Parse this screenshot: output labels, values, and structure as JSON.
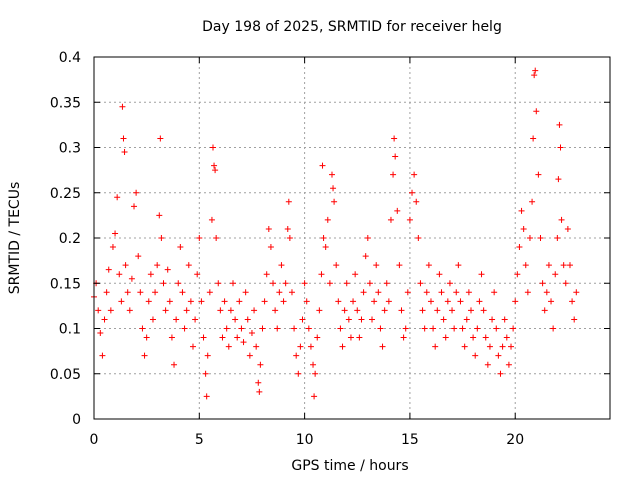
{
  "chart_data": {
    "type": "scatter",
    "title": "Day 198 of 2025, SRMTID for receiver helg",
    "xlabel": "GPS time / hours",
    "ylabel": "SRMTID / TECUs",
    "xlim": [
      0,
      24.5
    ],
    "ylim": [
      0,
      0.4
    ],
    "xticks": [
      0,
      5,
      10,
      15,
      20
    ],
    "xtick_labels": [
      "0",
      "5",
      "10",
      "15",
      "20"
    ],
    "yticks": [
      0,
      0.05,
      0.1,
      0.15,
      0.2,
      0.25,
      0.3,
      0.35,
      0.4
    ],
    "ytick_labels": [
      "0",
      "0.05",
      "0.1",
      "0.15",
      "0.2",
      "0.25",
      "0.3",
      "0.35",
      "0.4"
    ],
    "grid": true,
    "marker": "plus",
    "series_color": "#ff0000",
    "series": [
      {
        "name": "SRMTID",
        "points": [
          [
            0.0,
            0.135
          ],
          [
            0.1,
            0.15
          ],
          [
            0.2,
            0.12
          ],
          [
            0.3,
            0.095
          ],
          [
            0.4,
            0.07
          ],
          [
            0.5,
            0.11
          ],
          [
            0.6,
            0.14
          ],
          [
            0.7,
            0.165
          ],
          [
            0.8,
            0.12
          ],
          [
            0.9,
            0.19
          ],
          [
            1.0,
            0.205
          ],
          [
            1.1,
            0.245
          ],
          [
            1.2,
            0.16
          ],
          [
            1.3,
            0.13
          ],
          [
            1.35,
            0.345
          ],
          [
            1.4,
            0.31
          ],
          [
            1.45,
            0.295
          ],
          [
            1.5,
            0.17
          ],
          [
            1.6,
            0.14
          ],
          [
            1.7,
            0.12
          ],
          [
            1.8,
            0.155
          ],
          [
            1.9,
            0.235
          ],
          [
            2.0,
            0.25
          ],
          [
            2.1,
            0.18
          ],
          [
            2.2,
            0.14
          ],
          [
            2.3,
            0.1
          ],
          [
            2.4,
            0.07
          ],
          [
            2.5,
            0.09
          ],
          [
            2.6,
            0.13
          ],
          [
            2.7,
            0.16
          ],
          [
            2.8,
            0.11
          ],
          [
            2.9,
            0.14
          ],
          [
            3.0,
            0.17
          ],
          [
            3.1,
            0.225
          ],
          [
            3.15,
            0.31
          ],
          [
            3.2,
            0.2
          ],
          [
            3.3,
            0.15
          ],
          [
            3.4,
            0.12
          ],
          [
            3.5,
            0.165
          ],
          [
            3.6,
            0.13
          ],
          [
            3.7,
            0.09
          ],
          [
            3.8,
            0.06
          ],
          [
            3.9,
            0.11
          ],
          [
            4.0,
            0.15
          ],
          [
            4.1,
            0.19
          ],
          [
            4.2,
            0.14
          ],
          [
            4.3,
            0.1
          ],
          [
            4.4,
            0.12
          ],
          [
            4.5,
            0.17
          ],
          [
            4.6,
            0.13
          ],
          [
            4.7,
            0.08
          ],
          [
            4.8,
            0.11
          ],
          [
            4.9,
            0.16
          ],
          [
            5.0,
            0.2
          ],
          [
            5.1,
            0.13
          ],
          [
            5.2,
            0.09
          ],
          [
            5.3,
            0.05
          ],
          [
            5.35,
            0.025
          ],
          [
            5.4,
            0.07
          ],
          [
            5.5,
            0.14
          ],
          [
            5.6,
            0.22
          ],
          [
            5.65,
            0.3
          ],
          [
            5.7,
            0.28
          ],
          [
            5.75,
            0.275
          ],
          [
            5.8,
            0.2
          ],
          [
            5.9,
            0.15
          ],
          [
            6.0,
            0.12
          ],
          [
            6.1,
            0.09
          ],
          [
            6.2,
            0.13
          ],
          [
            6.3,
            0.1
          ],
          [
            6.4,
            0.08
          ],
          [
            6.5,
            0.12
          ],
          [
            6.6,
            0.15
          ],
          [
            6.7,
            0.11
          ],
          [
            6.8,
            0.09
          ],
          [
            6.9,
            0.13
          ],
          [
            7.0,
            0.1
          ],
          [
            7.1,
            0.085
          ],
          [
            7.2,
            0.14
          ],
          [
            7.3,
            0.11
          ],
          [
            7.4,
            0.07
          ],
          [
            7.5,
            0.095
          ],
          [
            7.6,
            0.12
          ],
          [
            7.7,
            0.08
          ],
          [
            7.8,
            0.04
          ],
          [
            7.85,
            0.03
          ],
          [
            7.9,
            0.06
          ],
          [
            8.0,
            0.1
          ],
          [
            8.1,
            0.13
          ],
          [
            8.2,
            0.16
          ],
          [
            8.3,
            0.21
          ],
          [
            8.4,
            0.19
          ],
          [
            8.5,
            0.15
          ],
          [
            8.6,
            0.12
          ],
          [
            8.7,
            0.1
          ],
          [
            8.8,
            0.14
          ],
          [
            8.9,
            0.17
          ],
          [
            9.0,
            0.13
          ],
          [
            9.1,
            0.15
          ],
          [
            9.2,
            0.21
          ],
          [
            9.25,
            0.24
          ],
          [
            9.3,
            0.2
          ],
          [
            9.4,
            0.14
          ],
          [
            9.5,
            0.1
          ],
          [
            9.6,
            0.07
          ],
          [
            9.7,
            0.05
          ],
          [
            9.8,
            0.08
          ],
          [
            9.9,
            0.11
          ],
          [
            10.0,
            0.15
          ],
          [
            10.1,
            0.13
          ],
          [
            10.2,
            0.1
          ],
          [
            10.3,
            0.08
          ],
          [
            10.4,
            0.06
          ],
          [
            10.45,
            0.025
          ],
          [
            10.5,
            0.05
          ],
          [
            10.6,
            0.09
          ],
          [
            10.7,
            0.12
          ],
          [
            10.8,
            0.16
          ],
          [
            10.85,
            0.28
          ],
          [
            10.9,
            0.2
          ],
          [
            11.0,
            0.19
          ],
          [
            11.1,
            0.22
          ],
          [
            11.2,
            0.15
          ],
          [
            11.3,
            0.27
          ],
          [
            11.35,
            0.255
          ],
          [
            11.4,
            0.24
          ],
          [
            11.5,
            0.17
          ],
          [
            11.6,
            0.13
          ],
          [
            11.7,
            0.1
          ],
          [
            11.8,
            0.08
          ],
          [
            11.9,
            0.12
          ],
          [
            12.0,
            0.15
          ],
          [
            12.1,
            0.11
          ],
          [
            12.2,
            0.09
          ],
          [
            12.3,
            0.13
          ],
          [
            12.4,
            0.16
          ],
          [
            12.5,
            0.12
          ],
          [
            12.6,
            0.09
          ],
          [
            12.7,
            0.11
          ],
          [
            12.8,
            0.14
          ],
          [
            12.9,
            0.18
          ],
          [
            13.0,
            0.2
          ],
          [
            13.1,
            0.15
          ],
          [
            13.2,
            0.11
          ],
          [
            13.3,
            0.13
          ],
          [
            13.4,
            0.17
          ],
          [
            13.5,
            0.14
          ],
          [
            13.6,
            0.1
          ],
          [
            13.7,
            0.08
          ],
          [
            13.8,
            0.12
          ],
          [
            13.9,
            0.15
          ],
          [
            14.0,
            0.13
          ],
          [
            14.1,
            0.22
          ],
          [
            14.2,
            0.27
          ],
          [
            14.25,
            0.31
          ],
          [
            14.3,
            0.29
          ],
          [
            14.4,
            0.23
          ],
          [
            14.5,
            0.17
          ],
          [
            14.6,
            0.12
          ],
          [
            14.7,
            0.09
          ],
          [
            14.8,
            0.1
          ],
          [
            14.9,
            0.14
          ],
          [
            15.0,
            0.22
          ],
          [
            15.1,
            0.25
          ],
          [
            15.2,
            0.27
          ],
          [
            15.3,
            0.24
          ],
          [
            15.4,
            0.2
          ],
          [
            15.5,
            0.15
          ],
          [
            15.6,
            0.12
          ],
          [
            15.7,
            0.1
          ],
          [
            15.8,
            0.14
          ],
          [
            15.9,
            0.17
          ],
          [
            16.0,
            0.13
          ],
          [
            16.1,
            0.1
          ],
          [
            16.2,
            0.08
          ],
          [
            16.3,
            0.12
          ],
          [
            16.4,
            0.16
          ],
          [
            16.5,
            0.14
          ],
          [
            16.6,
            0.11
          ],
          [
            16.7,
            0.09
          ],
          [
            16.8,
            0.13
          ],
          [
            16.9,
            0.15
          ],
          [
            17.0,
            0.12
          ],
          [
            17.1,
            0.1
          ],
          [
            17.2,
            0.14
          ],
          [
            17.3,
            0.17
          ],
          [
            17.4,
            0.13
          ],
          [
            17.5,
            0.1
          ],
          [
            17.6,
            0.08
          ],
          [
            17.7,
            0.11
          ],
          [
            17.8,
            0.14
          ],
          [
            17.9,
            0.12
          ],
          [
            18.0,
            0.09
          ],
          [
            18.1,
            0.07
          ],
          [
            18.2,
            0.1
          ],
          [
            18.3,
            0.13
          ],
          [
            18.4,
            0.16
          ],
          [
            18.5,
            0.12
          ],
          [
            18.6,
            0.09
          ],
          [
            18.7,
            0.06
          ],
          [
            18.8,
            0.08
          ],
          [
            18.9,
            0.11
          ],
          [
            19.0,
            0.14
          ],
          [
            19.1,
            0.1
          ],
          [
            19.2,
            0.07
          ],
          [
            19.3,
            0.05
          ],
          [
            19.4,
            0.08
          ],
          [
            19.5,
            0.11
          ],
          [
            19.6,
            0.09
          ],
          [
            19.7,
            0.06
          ],
          [
            19.8,
            0.08
          ],
          [
            19.9,
            0.1
          ],
          [
            20.0,
            0.13
          ],
          [
            20.1,
            0.16
          ],
          [
            20.2,
            0.19
          ],
          [
            20.3,
            0.23
          ],
          [
            20.4,
            0.21
          ],
          [
            20.5,
            0.17
          ],
          [
            20.6,
            0.14
          ],
          [
            20.7,
            0.2
          ],
          [
            20.8,
            0.24
          ],
          [
            20.85,
            0.31
          ],
          [
            20.9,
            0.38
          ],
          [
            20.95,
            0.385
          ],
          [
            21.0,
            0.34
          ],
          [
            21.1,
            0.27
          ],
          [
            21.2,
            0.2
          ],
          [
            21.3,
            0.15
          ],
          [
            21.4,
            0.12
          ],
          [
            21.5,
            0.14
          ],
          [
            21.6,
            0.17
          ],
          [
            21.7,
            0.13
          ],
          [
            21.8,
            0.1
          ],
          [
            21.9,
            0.16
          ],
          [
            22.0,
            0.2
          ],
          [
            22.05,
            0.265
          ],
          [
            22.1,
            0.325
          ],
          [
            22.15,
            0.3
          ],
          [
            22.2,
            0.22
          ],
          [
            22.3,
            0.17
          ],
          [
            22.4,
            0.15
          ],
          [
            22.5,
            0.21
          ],
          [
            22.6,
            0.17
          ],
          [
            22.7,
            0.13
          ],
          [
            22.8,
            0.11
          ],
          [
            22.9,
            0.14
          ]
        ]
      }
    ]
  }
}
